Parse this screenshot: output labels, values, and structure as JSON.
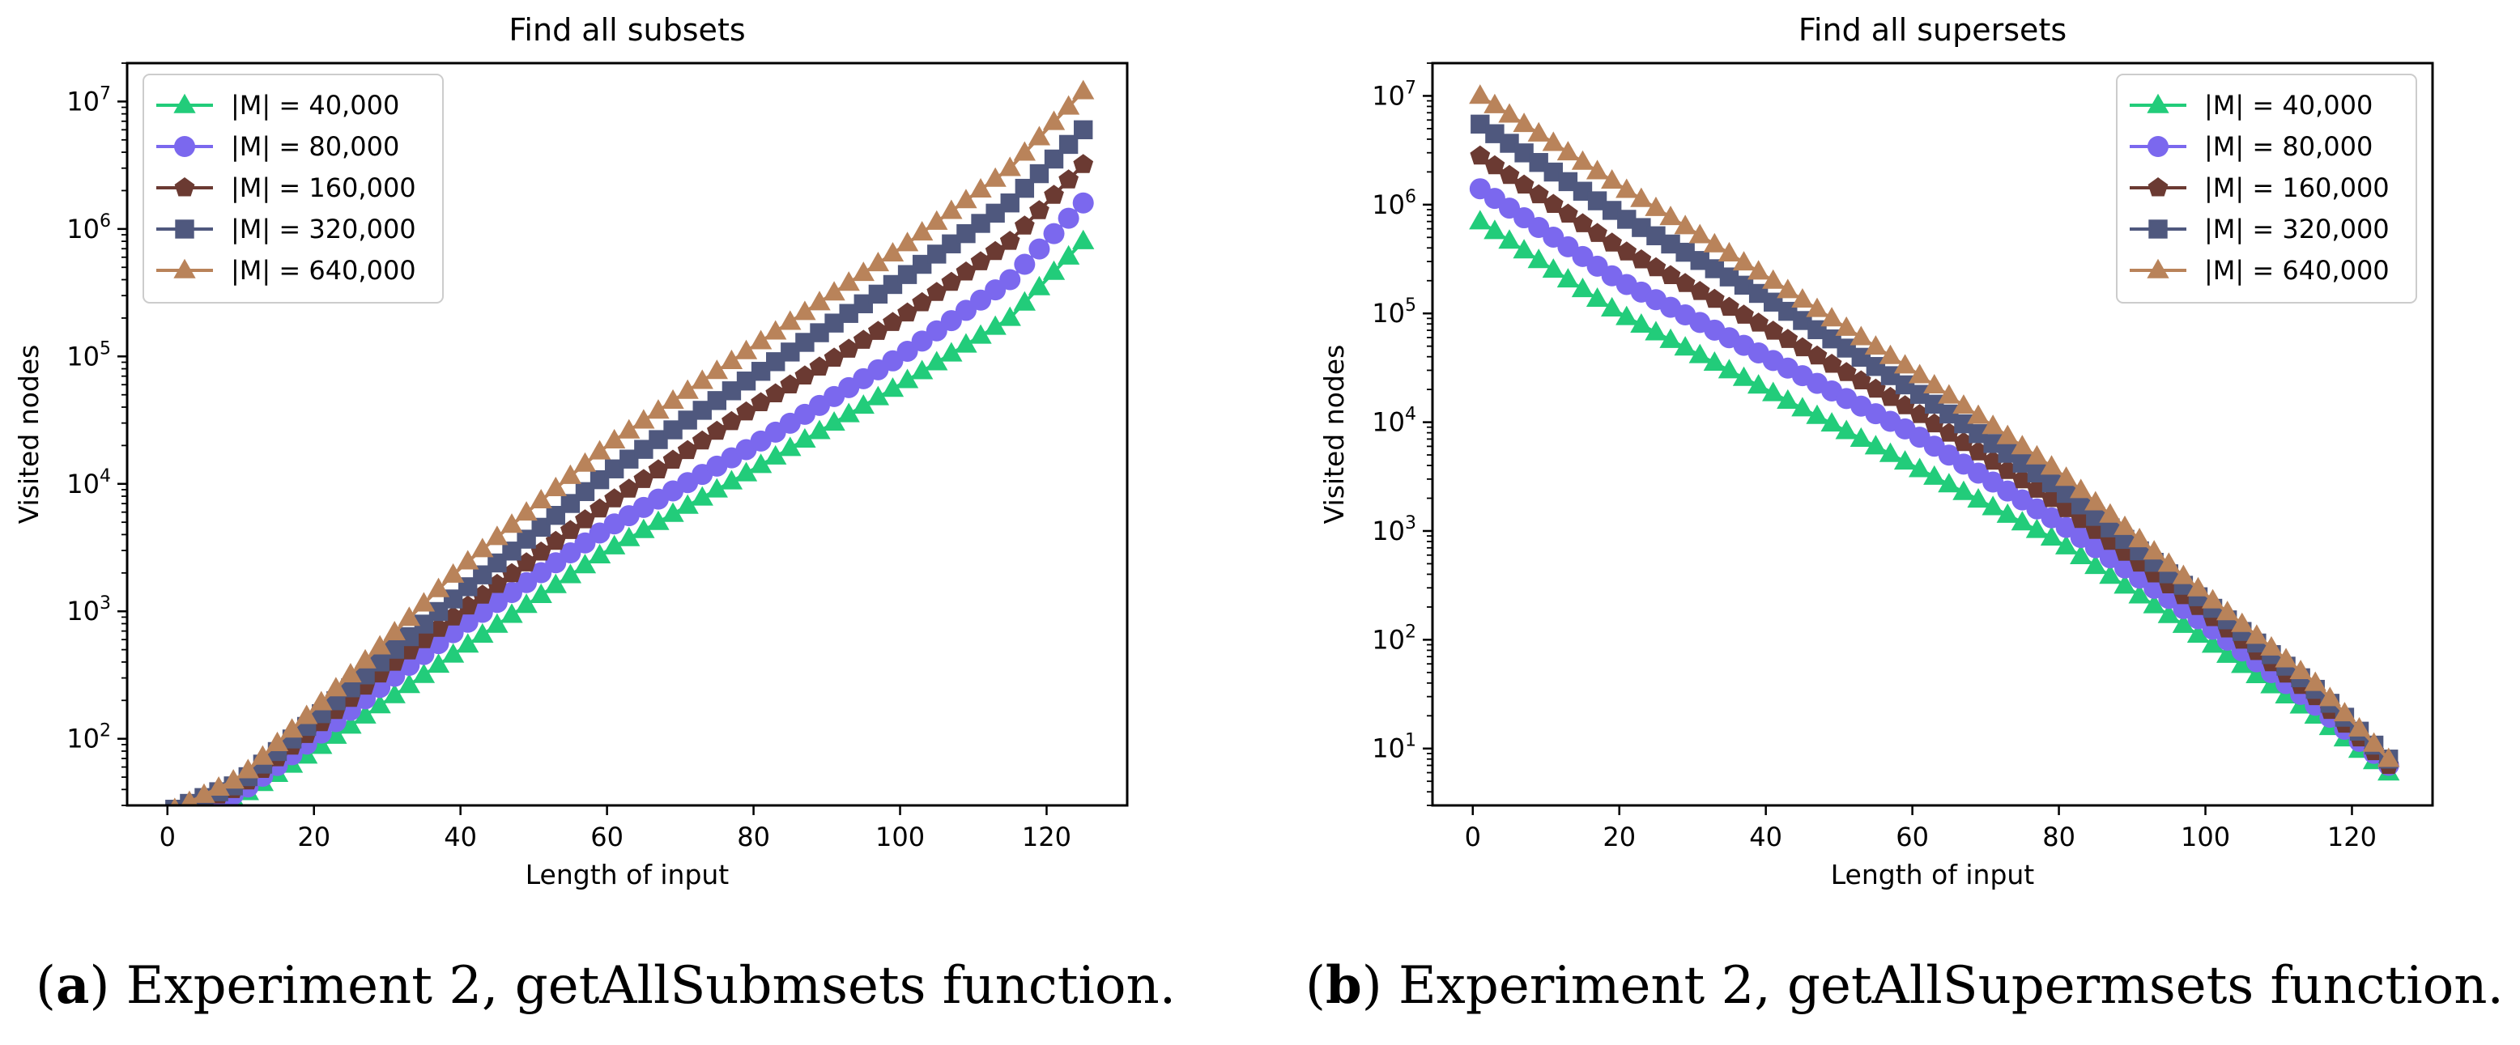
{
  "captions": [
    {
      "label": "a",
      "text": "Experiment 2, getAllSubmsets function."
    },
    {
      "label": "b",
      "text": "Experiment 2, getAllSupermsets function."
    }
  ],
  "colors": {
    "green": "#22cc7a",
    "purple": "#7b68ee",
    "brown": "#6b3a32",
    "slate": "#4f587e",
    "tan": "#b9835a"
  },
  "chart_data": [
    {
      "type": "line",
      "title": "Find all subsets",
      "xlabel": "Length of input",
      "ylabel": "Visited nodes",
      "yscale": "log",
      "xlim": [
        -5.5,
        131
      ],
      "ylim": [
        30,
        20000000
      ],
      "xticks": [
        "0",
        "20",
        "40",
        "60",
        "80",
        "100",
        "120"
      ],
      "yticks": [
        {
          "exp": 2
        },
        {
          "exp": 3
        },
        {
          "exp": 4
        },
        {
          "exp": 5
        },
        {
          "exp": 6
        },
        {
          "exp": 7
        }
      ],
      "legend_position": "upper-left",
      "x_start": 1,
      "x_end": 125,
      "x_step": 2,
      "series": [
        {
          "name": "|M| = 40,000",
          "marker": "triangle",
          "color": "#22cc7a",
          "x": [
            1,
            10,
            20,
            30,
            40,
            60,
            80,
            100,
            115,
            125
          ],
          "y": [
            25,
            35,
            80,
            200,
            500,
            3000,
            13000,
            60000,
            200000,
            800000
          ]
        },
        {
          "name": "|M| = 80,000",
          "marker": "circle",
          "color": "#7b68ee",
          "x": [
            1,
            10,
            20,
            30,
            40,
            60,
            80,
            100,
            115,
            125
          ],
          "y": [
            26,
            38,
            100,
            280,
            750,
            4500,
            20000,
            100000,
            400000,
            1600000
          ]
        },
        {
          "name": "|M| = 160,000",
          "marker": "pentagon",
          "color": "#6b3a32",
          "x": [
            1,
            10,
            20,
            30,
            40,
            60,
            80,
            100,
            115,
            125
          ],
          "y": [
            27,
            42,
            120,
            360,
            1000,
            7000,
            40000,
            200000,
            800000,
            3200000
          ]
        },
        {
          "name": "|M| = 320,000",
          "marker": "square",
          "color": "#4f587e",
          "x": [
            1,
            10,
            20,
            30,
            40,
            60,
            80,
            100,
            115,
            125
          ],
          "y": [
            28,
            45,
            140,
            450,
            1400,
            12000,
            70000,
            400000,
            1600000,
            6000000
          ]
        },
        {
          "name": "|M| = 640,000",
          "marker": "triangle",
          "color": "#b9835a",
          "x": [
            1,
            10,
            20,
            30,
            40,
            60,
            80,
            100,
            115,
            125
          ],
          "y": [
            28,
            50,
            170,
            600,
            2200,
            20000,
            120000,
            700000,
            3000000,
            12000000
          ]
        }
      ]
    },
    {
      "type": "line",
      "title": "Find all supersets",
      "xlabel": "Length of input",
      "ylabel": "Visited nodes",
      "yscale": "log",
      "xlim": [
        -5.5,
        131
      ],
      "ylim": [
        3,
        20000000
      ],
      "xticks": [
        "0",
        "20",
        "40",
        "60",
        "80",
        "100",
        "120"
      ],
      "yticks": [
        {
          "exp": 1
        },
        {
          "exp": 2
        },
        {
          "exp": 3
        },
        {
          "exp": 4
        },
        {
          "exp": 5
        },
        {
          "exp": 6
        },
        {
          "exp": 7
        }
      ],
      "legend_position": "upper-right",
      "x_start": 1,
      "x_end": 125,
      "x_step": 2,
      "series": [
        {
          "name": "|M| = 40,000",
          "marker": "triangle",
          "color": "#22cc7a",
          "x": [
            1,
            20,
            40,
            60,
            80,
            100,
            115,
            125
          ],
          "y": [
            700000,
            100000,
            20000,
            4000,
            800,
            100,
            20,
            6
          ]
        },
        {
          "name": "|M| = 80,000",
          "marker": "circle",
          "color": "#7b68ee",
          "x": [
            1,
            20,
            40,
            60,
            80,
            100,
            115,
            125
          ],
          "y": [
            1400000,
            200000,
            40000,
            8000,
            1200,
            140,
            25,
            7
          ]
        },
        {
          "name": "|M| = 160,000",
          "marker": "pentagon",
          "color": "#6b3a32",
          "x": [
            1,
            20,
            40,
            60,
            80,
            100,
            115,
            125
          ],
          "y": [
            2800000,
            400000,
            75000,
            13000,
            1800,
            180,
            30,
            7
          ]
        },
        {
          "name": "|M| = 320,000",
          "marker": "square",
          "color": "#4f587e",
          "x": [
            1,
            20,
            40,
            60,
            80,
            100,
            115,
            125
          ],
          "y": [
            5500000,
            800000,
            140000,
            20000,
            2500,
            220,
            35,
            8
          ]
        },
        {
          "name": "|M| = 640,000",
          "marker": "triangle",
          "color": "#b9835a",
          "x": [
            1,
            20,
            40,
            60,
            80,
            100,
            115,
            125
          ],
          "y": [
            10000000,
            1500000,
            220000,
            30000,
            3500,
            260,
            40,
            8
          ]
        }
      ]
    }
  ]
}
